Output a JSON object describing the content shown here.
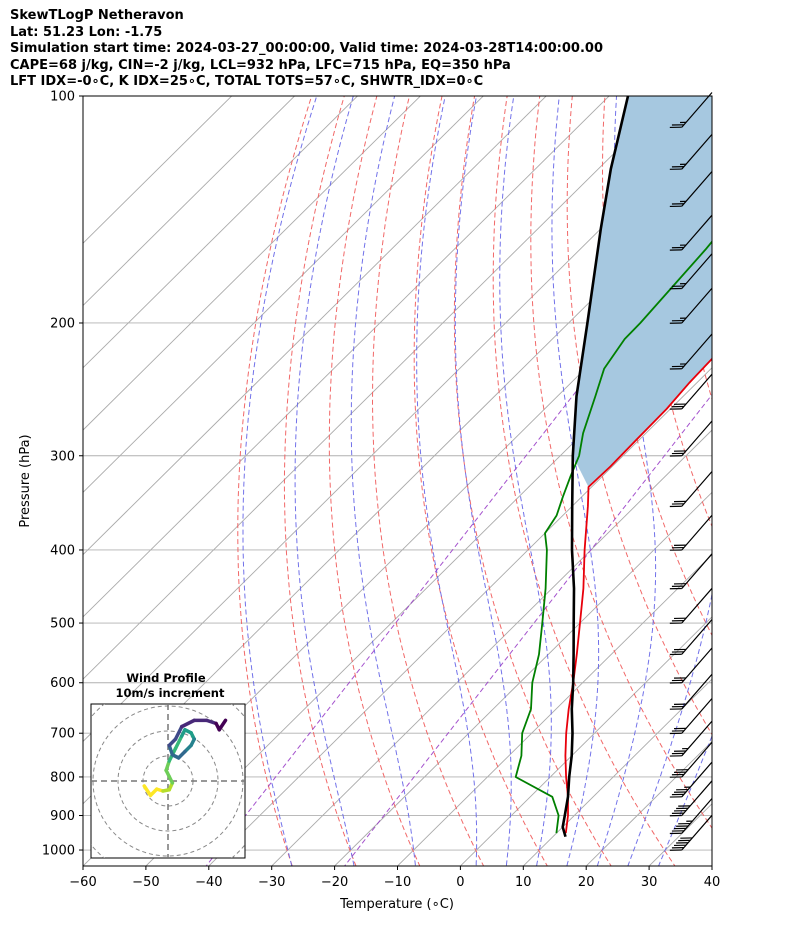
{
  "header": {
    "line1": "SkewTLogP Netheravon",
    "line2": "Lat: 51.23   Lon: -1.75",
    "line3": "Simulation start time: 2024-03-27_00:00:00, Valid time: 2024-03-28T14:00:00.00",
    "line4": "CAPE=68 j/kg, CIN=-2 j/kg, LCL=932 hPa, LFC=715 hPa, EQ=350 hPa",
    "line5": "LFT IDX=-0∘C, K IDX=25∘C, TOTAL TOTS=57∘C, SHWTR_IDX=0∘C"
  },
  "colors": {
    "temperature": "#e8000b",
    "dewpoint": "#008000",
    "parcel": "#000000",
    "cape_fill": "#a6c8e0",
    "dry_adiabat": "#f06060",
    "moist_adiabat": "#6a6ae8",
    "mixing_ratio": "#9a3fc8",
    "isotherm": "#aaaaaa"
  },
  "chart_data": {
    "type": "line",
    "title": "",
    "xlabel": "Temperature (∘C)",
    "ylabel": "Pressure (hPa)",
    "xlim": [
      -60,
      40
    ],
    "ylim": [
      1050,
      100
    ],
    "y_scale": "log",
    "grid": true,
    "x_ticks": [
      "−60",
      "−50",
      "−40",
      "−30",
      "−20",
      "−10",
      "0",
      "10",
      "20",
      "30",
      "40"
    ],
    "y_ticks": [
      {
        "p": 100,
        "label": "100"
      },
      {
        "p": 200,
        "label": "200"
      },
      {
        "p": 300,
        "label": "300"
      },
      {
        "p": 400,
        "label": "400"
      },
      {
        "p": 500,
        "label": "500"
      },
      {
        "p": 600,
        "label": "600"
      },
      {
        "p": 700,
        "label": "700"
      },
      {
        "p": 800,
        "label": "800"
      },
      {
        "p": 900,
        "label": "900"
      },
      {
        "p": 1000,
        "label": "1000"
      }
    ],
    "series": [
      {
        "key": "temperature",
        "points": [
          [
            950,
            11.5
          ],
          [
            900,
            9.0
          ],
          [
            850,
            6.0
          ],
          [
            800,
            2.5
          ],
          [
            750,
            -1.0
          ],
          [
            700,
            -4.5
          ],
          [
            650,
            -8.0
          ],
          [
            600,
            -11.5
          ],
          [
            550,
            -15.5
          ],
          [
            500,
            -20.0
          ],
          [
            450,
            -25.0
          ],
          [
            400,
            -31.0
          ],
          [
            350,
            -37.5
          ],
          [
            330,
            -40.5
          ],
          [
            310,
            -40.3
          ],
          [
            280,
            -40.5
          ],
          [
            260,
            -40.6
          ],
          [
            240,
            -41.2
          ],
          [
            220,
            -41.5
          ],
          [
            200,
            -41.8
          ],
          [
            180,
            -42.5
          ],
          [
            160,
            -44.0
          ],
          [
            140,
            -46.0
          ],
          [
            120,
            -48.0
          ],
          [
            100,
            -50.5
          ]
        ]
      },
      {
        "key": "dewpoint",
        "points": [
          [
            950,
            10.0
          ],
          [
            900,
            7.5
          ],
          [
            850,
            3.5
          ],
          [
            800,
            -5.5
          ],
          [
            750,
            -8.0
          ],
          [
            700,
            -11.5
          ],
          [
            650,
            -14.0
          ],
          [
            600,
            -18.0
          ],
          [
            550,
            -21.5
          ],
          [
            500,
            -26.0
          ],
          [
            450,
            -31.0
          ],
          [
            400,
            -37.0
          ],
          [
            380,
            -40.0
          ],
          [
            360,
            -41.0
          ],
          [
            340,
            -43.0
          ],
          [
            320,
            -45.0
          ],
          [
            300,
            -47.0
          ],
          [
            280,
            -50.0
          ],
          [
            250,
            -54.0
          ],
          [
            230,
            -57.0
          ],
          [
            210,
            -58.5
          ],
          [
            200,
            -58.6
          ],
          [
            160,
            -60.0
          ],
          [
            130,
            -62.0
          ],
          [
            100,
            -65.0
          ]
        ]
      },
      {
        "key": "parcel",
        "points": [
          [
            960,
            12.0
          ],
          [
            932,
            10.0
          ],
          [
            900,
            8.5
          ],
          [
            850,
            6.0
          ],
          [
            800,
            3.0
          ],
          [
            750,
            0.0
          ],
          [
            700,
            -3.5
          ],
          [
            650,
            -7.5
          ],
          [
            600,
            -11.5
          ],
          [
            550,
            -16.0
          ],
          [
            500,
            -21.0
          ],
          [
            450,
            -26.5
          ],
          [
            400,
            -33.0
          ],
          [
            350,
            -40.0
          ],
          [
            300,
            -48.0
          ],
          [
            250,
            -57.0
          ],
          [
            200,
            -67.0
          ],
          [
            150,
            -80.0
          ],
          [
            125,
            -88.0
          ],
          [
            100,
            -97.0
          ]
        ]
      }
    ],
    "dry_adiabats_thetaK": [
      243,
      253,
      263,
      273,
      283,
      293,
      303,
      313,
      323,
      333,
      343,
      353,
      363,
      373,
      383,
      393,
      403,
      413,
      423,
      433,
      443,
      453
    ],
    "moist_adiabats_T1000C": [
      -30,
      -20,
      -10,
      0,
      5,
      10,
      15,
      20,
      25,
      30
    ],
    "mixing_ratio_lines": [
      {
        "T1000C": -41
      },
      {
        "T1000C": -19
      }
    ],
    "wind_barbs": [
      {
        "p": 1000,
        "wspd_kt": 60
      },
      {
        "p": 950,
        "wspd_kt": 55
      },
      {
        "p": 900,
        "wspd_kt": 50
      },
      {
        "p": 850,
        "wspd_kt": 45
      },
      {
        "p": 800,
        "wspd_kt": 40
      },
      {
        "p": 750,
        "wspd_kt": 35
      },
      {
        "p": 700,
        "wspd_kt": 30
      },
      {
        "p": 650,
        "wspd_kt": 30
      },
      {
        "p": 600,
        "wspd_kt": 30
      },
      {
        "p": 550,
        "wspd_kt": 30
      },
      {
        "p": 500,
        "wspd_kt": 30
      },
      {
        "p": 450,
        "wspd_kt": 30
      },
      {
        "p": 400,
        "wspd_kt": 30
      },
      {
        "p": 350,
        "wspd_kt": 30
      },
      {
        "p": 300,
        "wspd_kt": 30
      },
      {
        "p": 260,
        "wspd_kt": 30
      },
      {
        "p": 230,
        "wspd_kt": 25
      },
      {
        "p": 200,
        "wspd_kt": 25
      },
      {
        "p": 180,
        "wspd_kt": 25
      },
      {
        "p": 160,
        "wspd_kt": 25
      },
      {
        "p": 140,
        "wspd_kt": 25
      },
      {
        "p": 125,
        "wspd_kt": 25
      },
      {
        "p": 110,
        "wspd_kt": 25
      }
    ],
    "inset": {
      "title": "Wind Profile",
      "subtitle": "10m/s increment",
      "hodograph_points": [
        [
          -7,
          -4
        ],
        [
          -6,
          -5.5
        ],
        [
          -5,
          -4.5
        ],
        [
          -4,
          -4.8
        ],
        [
          -3,
          -4.6
        ],
        [
          -2.5,
          -3.5
        ],
        [
          -3,
          -2.5
        ],
        [
          -3.5,
          -1.5
        ],
        [
          -3,
          0
        ],
        [
          -2,
          2
        ],
        [
          -1,
          4
        ],
        [
          -0.5,
          5
        ],
        [
          0.5,
          4.5
        ],
        [
          1,
          3.5
        ],
        [
          0.5,
          2.5
        ],
        [
          -0.5,
          1.5
        ],
        [
          -1.5,
          0.5
        ],
        [
          -2.5,
          1.0
        ],
        [
          -3,
          2.5
        ],
        [
          -2,
          3.5
        ],
        [
          -1,
          5.5
        ],
        [
          1,
          6.5
        ],
        [
          3,
          6.5
        ],
        [
          4.5,
          6.0
        ],
        [
          5,
          5.0
        ],
        [
          6,
          6.5
        ]
      ]
    }
  }
}
